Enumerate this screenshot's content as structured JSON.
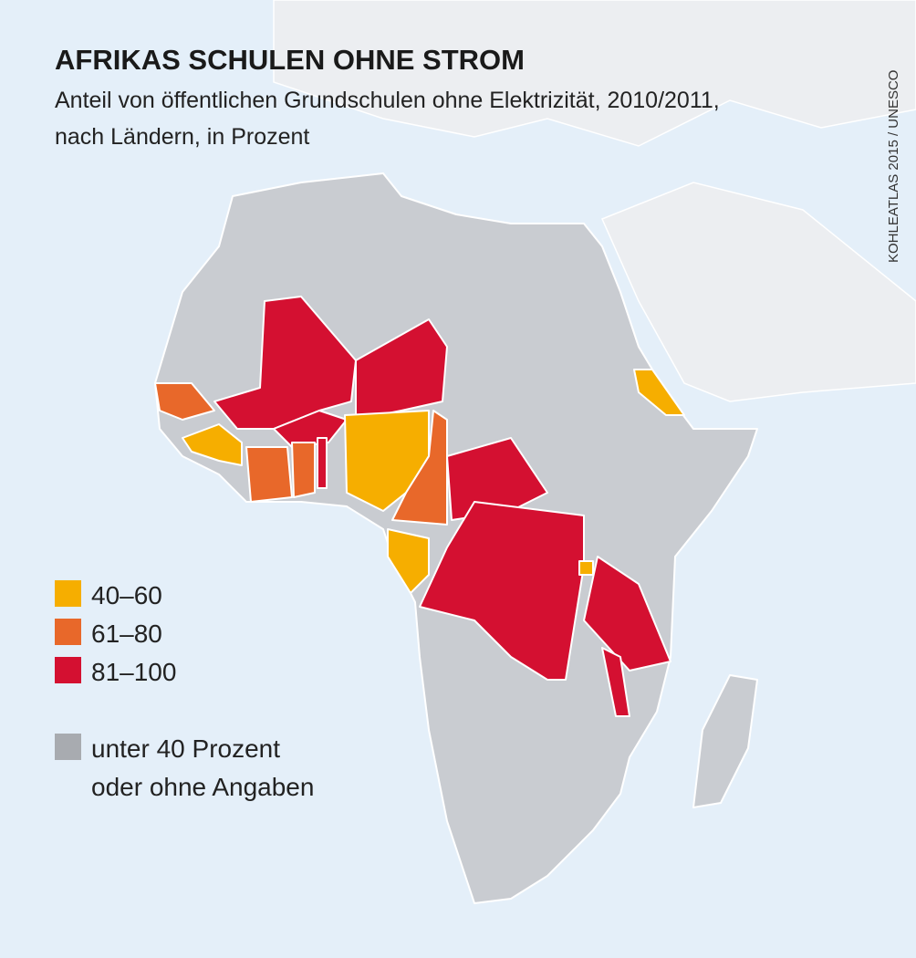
{
  "header": {
    "title": "AFRIKAS SCHULEN OHNE STROM",
    "subtitle_lines": [
      "Anteil von öffentlichen Grundschulen ohne Elektrizität, 2010/2011,",
      "nach Ländern, in Prozent"
    ],
    "source": "KOHLEATLAS 2015 / UNESCO"
  },
  "legend": {
    "items": [
      {
        "label": "40–60",
        "color": "#f6ae00"
      },
      {
        "label": "61–80",
        "color": "#e8682a"
      },
      {
        "label": "81–100",
        "color": "#d41031"
      }
    ],
    "other": {
      "lines": [
        "unter 40 Prozent",
        "oder ohne Angaben"
      ],
      "color": "#a8abb0"
    }
  }
}
